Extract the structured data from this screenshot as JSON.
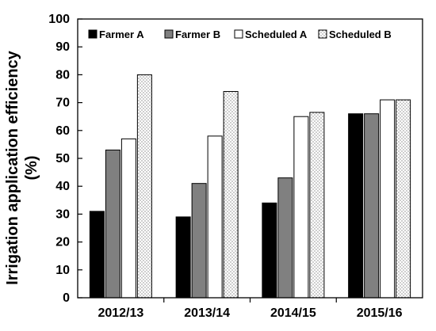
{
  "chart_data": {
    "type": "bar",
    "categories": [
      "2012/13",
      "2013/14",
      "2014/15",
      "2015/16"
    ],
    "series": [
      {
        "name": "Farmer A",
        "values": [
          31,
          29,
          34,
          66
        ],
        "color": "#000000",
        "pattern": "solid"
      },
      {
        "name": "Farmer B",
        "values": [
          53,
          41,
          43,
          66
        ],
        "color": "#808080",
        "pattern": "solid"
      },
      {
        "name": "Scheduled A",
        "values": [
          57,
          58,
          65,
          71
        ],
        "color": "#ffffff",
        "pattern": "solid"
      },
      {
        "name": "Scheduled B",
        "values": [
          80,
          74,
          66.5,
          71
        ],
        "color": "#ffffff",
        "pattern": "dotted"
      }
    ],
    "title": "",
    "xlabel": "",
    "ylabel_lines": [
      "Irrigation application efficiency",
      "(%)"
    ],
    "ylim": [
      0,
      100
    ],
    "yticks": [
      0,
      10,
      20,
      30,
      40,
      50,
      60,
      70,
      80,
      90,
      100
    ],
    "grid": false,
    "legend_position": "top"
  }
}
